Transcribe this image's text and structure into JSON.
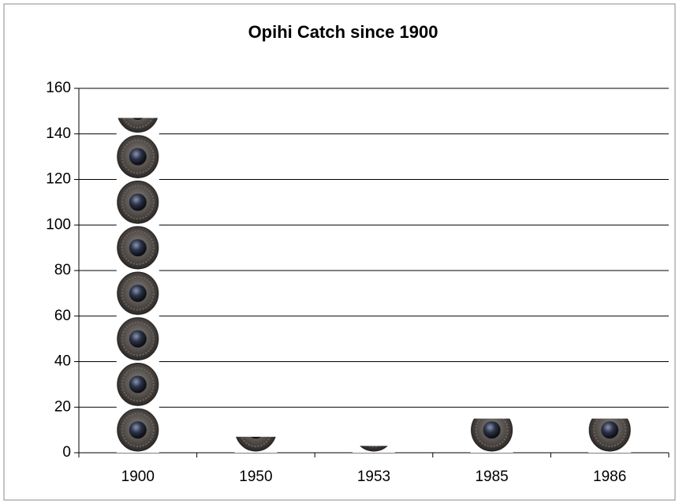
{
  "chart_data": {
    "type": "pictograph",
    "title": "Opihi Catch since 1900",
    "categories": [
      "1900",
      "1950",
      "1953",
      "1985",
      "1986"
    ],
    "values": [
      147,
      7,
      3,
      15,
      15
    ],
    "ylim": [
      0,
      160
    ],
    "yticks": [
      0,
      20,
      40,
      60,
      80,
      100,
      120,
      140,
      160
    ],
    "grid": true
  }
}
